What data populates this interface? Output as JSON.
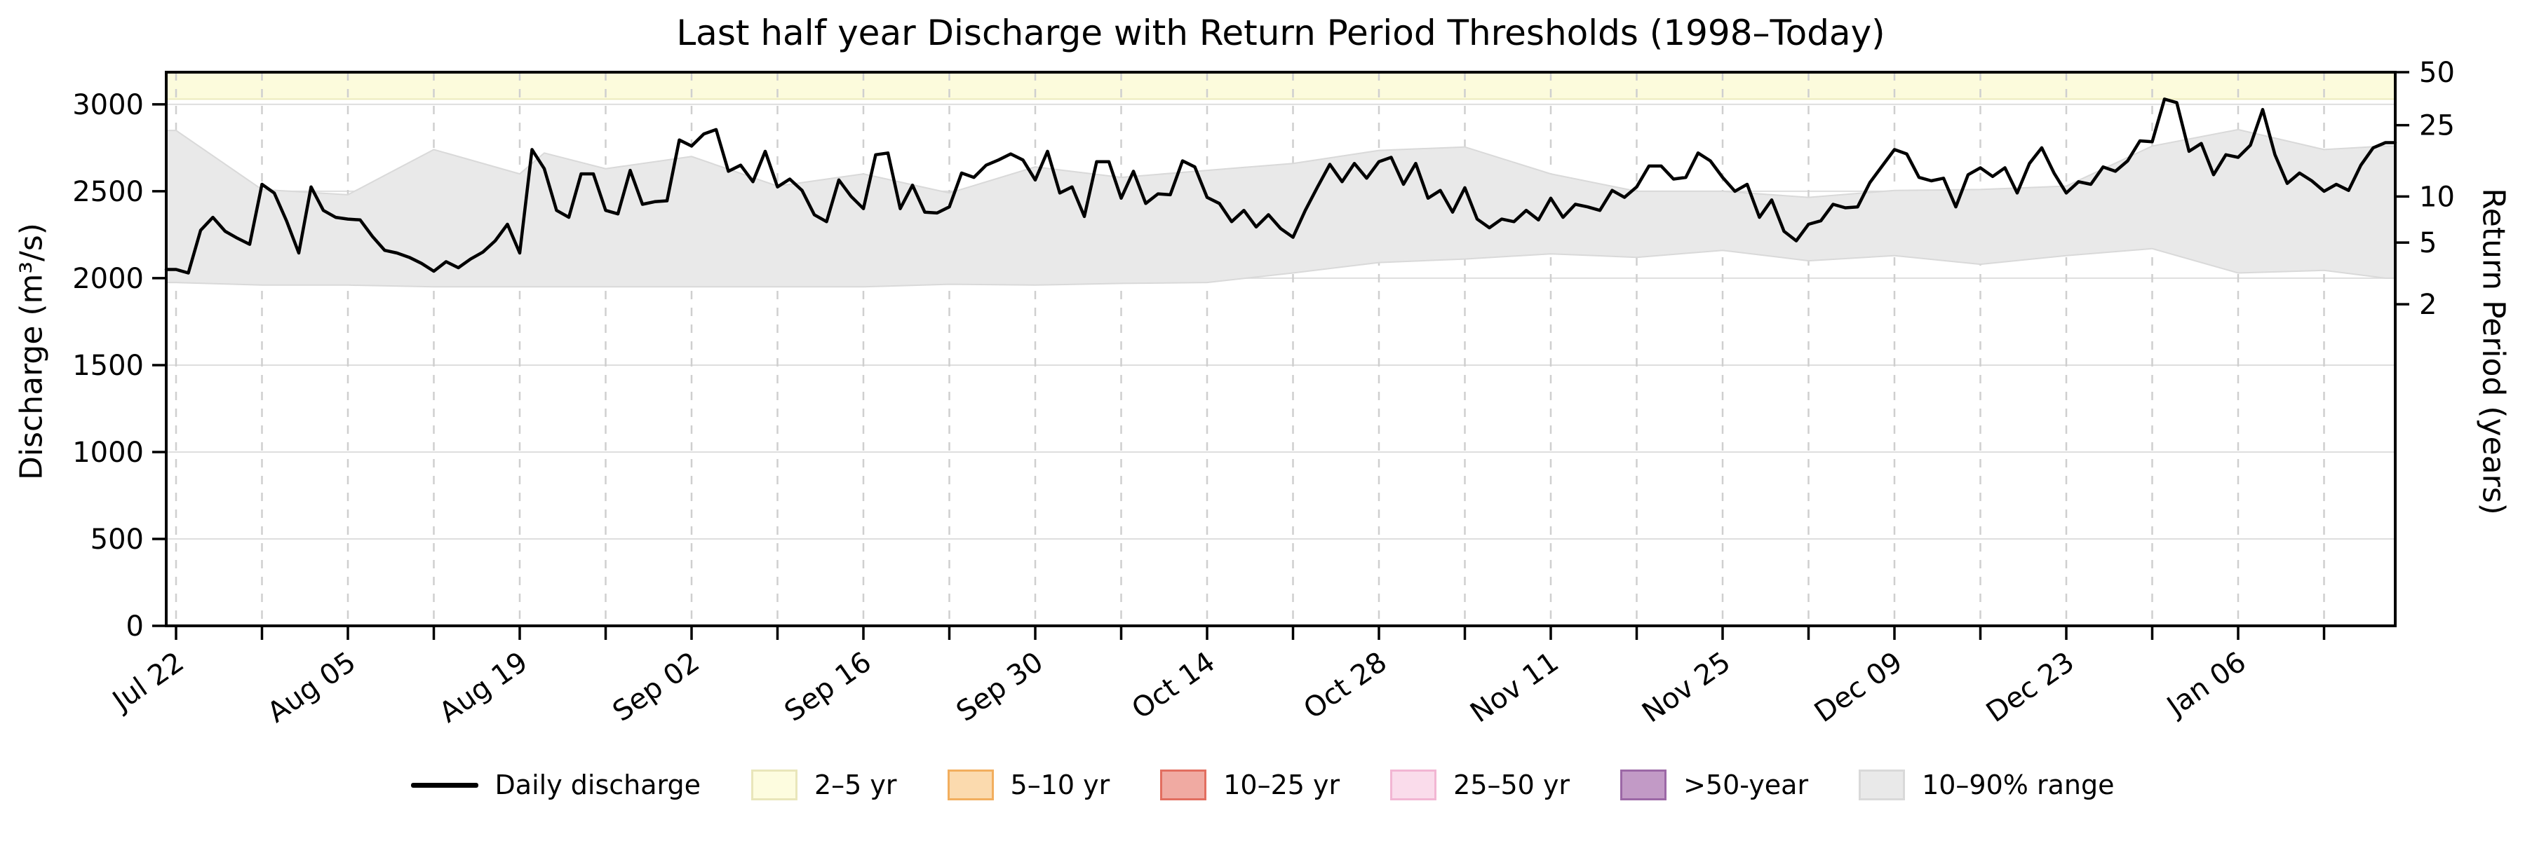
{
  "title": "Last half year Discharge with Return Period Thresholds (1998–Today)",
  "axes": {
    "left_label": "Discharge (m³/s)",
    "right_label": "Return Period (years)"
  },
  "legend": [
    {
      "label": "Daily discharge",
      "type": "line",
      "color": "#000000"
    },
    {
      "label": "2–5 yr",
      "type": "patch",
      "fill": "#FDFCDF",
      "border": "#E9E6BA"
    },
    {
      "label": "5–10 yr",
      "type": "patch",
      "fill": "#FBDAAE",
      "border": "#F2AE5E"
    },
    {
      "label": "10–25 yr",
      "type": "patch",
      "fill": "#F0AAA2",
      "border": "#E26E60"
    },
    {
      "label": "25–50 yr",
      "type": "patch",
      "fill": "#FADCEB",
      "border": "#F2B6D3"
    },
    {
      "label": ">50-year",
      "type": "patch",
      "fill": "#C29AC6",
      "border": "#9C68A6"
    },
    {
      "label": "10–90% range",
      "type": "patch",
      "fill": "#E9E9E9",
      "border": "#D9D9D9"
    }
  ],
  "chart_data": {
    "type": "line",
    "title": "Last half year Discharge with Return Period Thresholds (1998–Today)",
    "ylabel": "Discharge (m³/s)",
    "ylabel_right": "Return Period (years)",
    "ylim": [
      0,
      3185
    ],
    "xlim_days": [
      -0.8,
      180.8
    ],
    "grid": true,
    "legend_position": "bottom",
    "x_start_label": "Jul 22",
    "sampling": "daily",
    "y_left_ticks": [
      0,
      500,
      1000,
      1500,
      2000,
      2500,
      3000
    ],
    "y_right_ticks": [
      {
        "label": "50",
        "q": 3185
      },
      {
        "label": "25",
        "q": 2880
      },
      {
        "label": "10",
        "q": 2470
      },
      {
        "label": "5",
        "q": 2205
      },
      {
        "label": "2",
        "q": 1850
      }
    ],
    "x_major_ticks": [
      {
        "day": 0,
        "label": "Jul 22"
      },
      {
        "day": 14,
        "label": "Aug 05"
      },
      {
        "day": 28,
        "label": "Aug 19"
      },
      {
        "day": 42,
        "label": "Sep 02"
      },
      {
        "day": 56,
        "label": "Sep 16"
      },
      {
        "day": 70,
        "label": "Sep 30"
      },
      {
        "day": 84,
        "label": "Oct 14"
      },
      {
        "day": 98,
        "label": "Oct 28"
      },
      {
        "day": 112,
        "label": "Nov 11"
      },
      {
        "day": 126,
        "label": "Nov 25"
      },
      {
        "day": 140,
        "label": "Dec 09"
      },
      {
        "day": 154,
        "label": "Dec 23"
      },
      {
        "day": 168,
        "label": "Jan 06"
      }
    ],
    "x_minor_days": [
      7,
      21,
      35,
      49,
      63,
      77,
      91,
      105,
      119,
      133,
      147,
      161,
      175
    ],
    "visible_threshold_band": {
      "label": "2–5 yr",
      "from": 3030,
      "to": 3185,
      "fill": "#FCFBDC",
      "edge": "#ECEABD"
    },
    "series": [
      {
        "name": "Daily discharge",
        "start_day": 0,
        "step_days": 1,
        "values": [
          2050,
          2030,
          2275,
          2350,
          2270,
          2230,
          2195,
          2540,
          2490,
          2330,
          2145,
          2525,
          2390,
          2350,
          2340,
          2335,
          2240,
          2160,
          2145,
          2120,
          2085,
          2040,
          2095,
          2060,
          2110,
          2150,
          2215,
          2310,
          2145,
          2740,
          2630,
          2390,
          2350,
          2600,
          2600,
          2390,
          2370,
          2620,
          2425,
          2440,
          2445,
          2795,
          2760,
          2830,
          2855,
          2615,
          2650,
          2555,
          2730,
          2525,
          2570,
          2505,
          2365,
          2325,
          2565,
          2470,
          2400,
          2710,
          2720,
          2400,
          2535,
          2380,
          2375,
          2410,
          2605,
          2580,
          2650,
          2680,
          2715,
          2680,
          2565,
          2730,
          2490,
          2525,
          2355,
          2670,
          2670,
          2460,
          2615,
          2430,
          2485,
          2480,
          2675,
          2640,
          2465,
          2430,
          2325,
          2390,
          2295,
          2365,
          2285,
          2235,
          2390,
          2525,
          2655,
          2555,
          2660,
          2575,
          2670,
          2695,
          2540,
          2660,
          2460,
          2505,
          2380,
          2520,
          2340,
          2290,
          2340,
          2325,
          2390,
          2335,
          2460,
          2350,
          2425,
          2410,
          2390,
          2505,
          2465,
          2525,
          2645,
          2645,
          2570,
          2580,
          2720,
          2675,
          2580,
          2500,
          2540,
          2350,
          2450,
          2270,
          2215,
          2310,
          2330,
          2425,
          2405,
          2410,
          2550,
          2645,
          2740,
          2715,
          2580,
          2560,
          2575,
          2410,
          2595,
          2635,
          2585,
          2635,
          2490,
          2660,
          2750,
          2605,
          2490,
          2555,
          2540,
          2640,
          2615,
          2675,
          2790,
          2785,
          3030,
          3010,
          2730,
          2775,
          2595,
          2710,
          2695,
          2765,
          2970,
          2710,
          2545,
          2605,
          2560,
          2500,
          2540,
          2505,
          2650,
          2750,
          2780
        ]
      },
      {
        "name": "10–90% range",
        "days": [
          0,
          7,
          14,
          21,
          28,
          30,
          35,
          42,
          49,
          56,
          63,
          70,
          77,
          84,
          91,
          98,
          105,
          112,
          119,
          126,
          133,
          140,
          147,
          154,
          161,
          168,
          175,
          180
        ],
        "high": [
          2850,
          2510,
          2480,
          2740,
          2600,
          2720,
          2630,
          2700,
          2530,
          2600,
          2490,
          2640,
          2580,
          2620,
          2660,
          2735,
          2755,
          2600,
          2500,
          2500,
          2465,
          2505,
          2510,
          2530,
          2760,
          2855,
          2740,
          2760
        ],
        "low": [
          1975,
          1960,
          1960,
          1950,
          1950,
          1950,
          1950,
          1950,
          1950,
          1950,
          1965,
          1960,
          1970,
          1975,
          2030,
          2090,
          2110,
          2140,
          2120,
          2160,
          2100,
          2130,
          2080,
          2130,
          2170,
          2030,
          2045,
          2000
        ]
      }
    ]
  },
  "style_colors": {
    "line": "#000000",
    "range_fill": "#E9E9E9",
    "range_edge": "#D9D9D9",
    "grid_v": "#CFCFCF",
    "grid_h": "#DEDEDE",
    "frame": "#000000"
  }
}
